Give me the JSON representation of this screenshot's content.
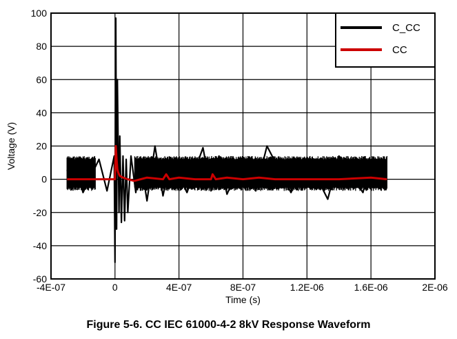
{
  "caption": "Figure 5-6. CC IEC 61000-4-2 8kV Response Waveform",
  "chart_data": {
    "type": "line",
    "title": "",
    "xlabel": "Time (s)",
    "ylabel": "Voltage (V)",
    "xlim": [
      -4e-07,
      2e-06
    ],
    "ylim": [
      -60,
      100
    ],
    "x_ticks": [
      -4e-07,
      0,
      4e-07,
      8e-07,
      1.2e-06,
      1.6e-06,
      2e-06
    ],
    "x_tick_labels": [
      "-4E-07",
      "0",
      "4E-07",
      "8E-07",
      "1.2E-06",
      "1.6E-06",
      "2E-06"
    ],
    "y_ticks": [
      -60,
      -40,
      -20,
      0,
      20,
      40,
      60,
      80,
      100
    ],
    "y_tick_labels": [
      "-60",
      "-40",
      "-20",
      "0",
      "20",
      "40",
      "60",
      "80",
      "100"
    ],
    "grid": true,
    "legend_position": "top-right",
    "series": [
      {
        "name": "C_CC",
        "color": "#000000",
        "noise_band": [
          -7,
          14
        ],
        "x": [
          -3e-07,
          -2.6e-07,
          -2e-07,
          -1e-07,
          -5e-08,
          -5e-09,
          0,
          5e-09,
          1e-08,
          1.5e-08,
          2e-08,
          2.5e-08,
          3e-08,
          4e-08,
          5e-08,
          6e-08,
          7e-08,
          8e-08,
          1e-07,
          1.3e-07,
          1.6e-07,
          2e-07,
          2.5e-07,
          3e-07,
          3.5e-07,
          4.5e-07,
          5.5e-07,
          6e-07,
          6.5e-07,
          7e-07,
          8e-07,
          8.8e-07,
          9.5e-07,
          1.1e-06,
          1.2e-06,
          1.33e-06,
          1.4e-06,
          1.55e-06,
          1.6e-06,
          1.7e-06
        ],
        "y": [
          5,
          13,
          -8,
          12,
          -7,
          14,
          -50,
          97,
          -30,
          60,
          18,
          -20,
          26,
          -26,
          14,
          -25,
          12,
          -20,
          14,
          -8,
          12,
          -13,
          20,
          -10,
          13,
          -8,
          19,
          -7,
          14,
          -9,
          13,
          -7,
          20,
          -8,
          13,
          -12,
          14,
          -8,
          12,
          6
        ]
      },
      {
        "name": "CC",
        "color": "#cc0000",
        "x": [
          -3e-07,
          -1e-07,
          -5e-09,
          0,
          5e-09,
          1e-08,
          1.5e-08,
          2e-08,
          3e-08,
          5e-08,
          8e-08,
          1.2e-07,
          1.6e-07,
          2e-07,
          3e-07,
          3.2e-07,
          3.4e-07,
          4e-07,
          5e-07,
          6e-07,
          6.1e-07,
          6.3e-07,
          7e-07,
          8e-07,
          9e-07,
          1e-06,
          1.2e-06,
          1.4e-06,
          1.6e-06,
          1.7e-06
        ],
        "y": [
          0,
          0,
          0,
          0,
          20,
          12,
          6,
          4,
          2,
          1,
          0,
          -1,
          0,
          1,
          0,
          3,
          0,
          1,
          0,
          0,
          3,
          0,
          1,
          0,
          1,
          0,
          0,
          0,
          1,
          0
        ]
      }
    ]
  }
}
